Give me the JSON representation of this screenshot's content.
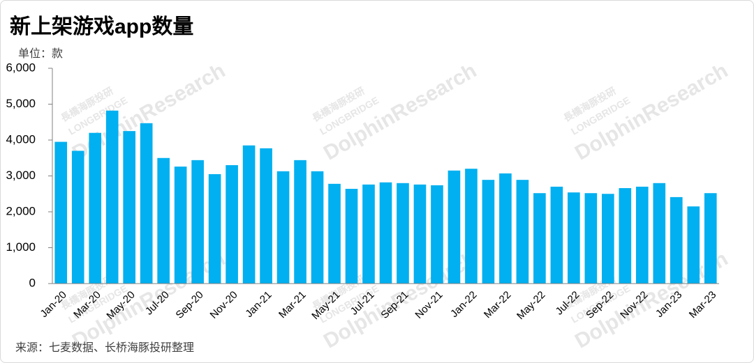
{
  "chart_data": {
    "type": "bar",
    "title": "新上架游戏app数量",
    "unit_label": "单位：款",
    "source": "来源：七麦数据、长桥海豚投研整理",
    "watermark": [
      "DolphinResearch",
      "LONGBRIDGE",
      "長橋海豚投研"
    ],
    "categories": [
      "Jan-20",
      null,
      "Mar-20",
      null,
      "May-20",
      null,
      "Jul-20",
      null,
      "Sep-20",
      null,
      "Nov-20",
      null,
      "Jan-21",
      null,
      "Mar-21",
      null,
      "May-21",
      null,
      "Jul-21",
      null,
      "Sep-21",
      null,
      "Nov-21",
      null,
      "Jan-22",
      null,
      "Mar-22",
      null,
      "May-22",
      null,
      "Jul-22",
      null,
      "Sep-22",
      null,
      "Nov-22",
      null,
      "Jan-23",
      null,
      "Mar-23"
    ],
    "values": [
      3950,
      3700,
      4200,
      4820,
      4250,
      4470,
      3500,
      3260,
      3440,
      3050,
      3300,
      3850,
      3770,
      3130,
      3440,
      3130,
      2780,
      2640,
      2760,
      2820,
      2800,
      2760,
      2740,
      3150,
      3200,
      2890,
      3070,
      2890,
      2520,
      2700,
      2540,
      2520,
      2500,
      2660,
      2700,
      2800,
      2410,
      2150,
      2520
    ],
    "color": "#00b0f0",
    "ylim": [
      0,
      6000
    ],
    "yticks": [
      0,
      {
        "value": 1000,
        "label": "1,000"
      },
      {
        "value": 2000,
        "label": "2,000"
      },
      {
        "value": 3000,
        "label": "3,000"
      },
      {
        "value": 4000,
        "label": "4,000"
      },
      {
        "value": 5000,
        "label": "5,000"
      },
      {
        "value": 6000,
        "label": "6,000"
      }
    ],
    "grid": false
  }
}
